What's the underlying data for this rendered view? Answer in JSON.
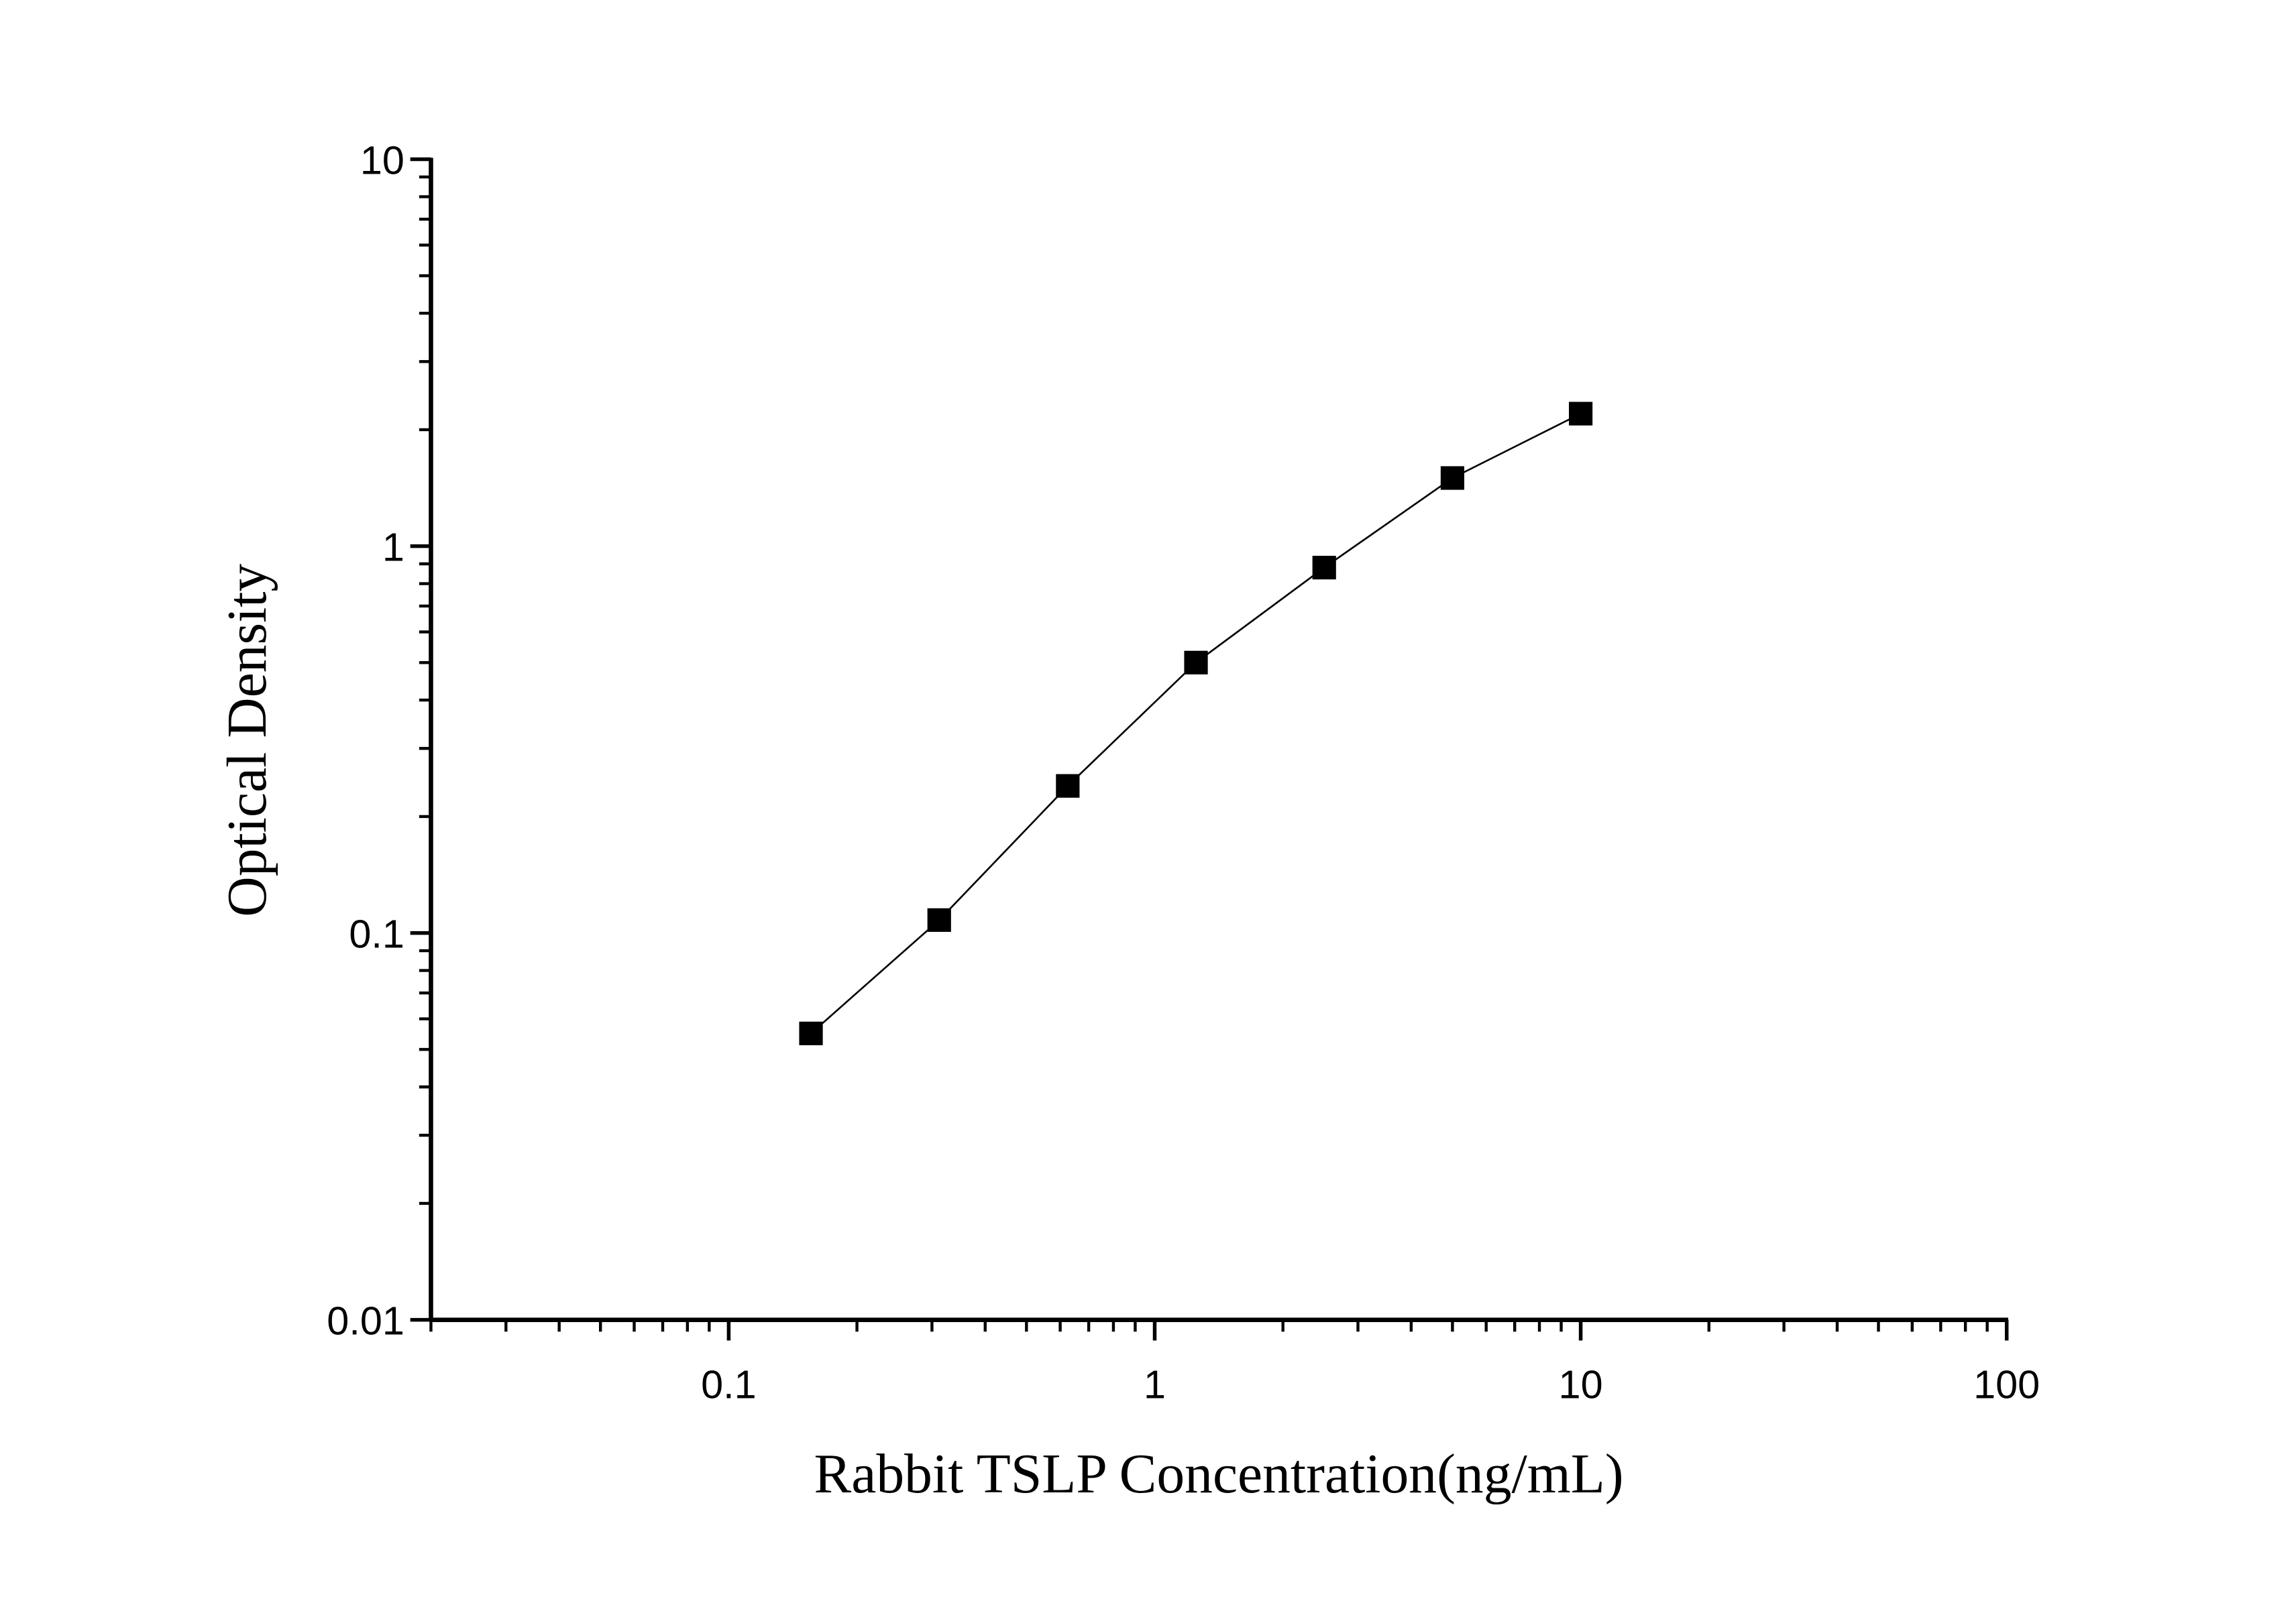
{
  "chart_data": {
    "type": "scatter-line",
    "xlabel": "Rabbit TSLP Concentration(ng/mL)",
    "ylabel": "Optical Density",
    "x": [
      0.156,
      0.312,
      0.625,
      1.25,
      2.5,
      5,
      10
    ],
    "values": [
      0.055,
      0.108,
      0.24,
      0.5,
      0.88,
      1.5,
      2.2
    ],
    "color": "#000000",
    "xscale": "log",
    "yscale": "log",
    "xlim": [
      0.02,
      100
    ],
    "ylim": [
      0.01,
      10
    ],
    "xticks": [
      0.1,
      1,
      10,
      100
    ],
    "yticks": [
      0.01,
      0.1,
      1,
      10
    ]
  }
}
